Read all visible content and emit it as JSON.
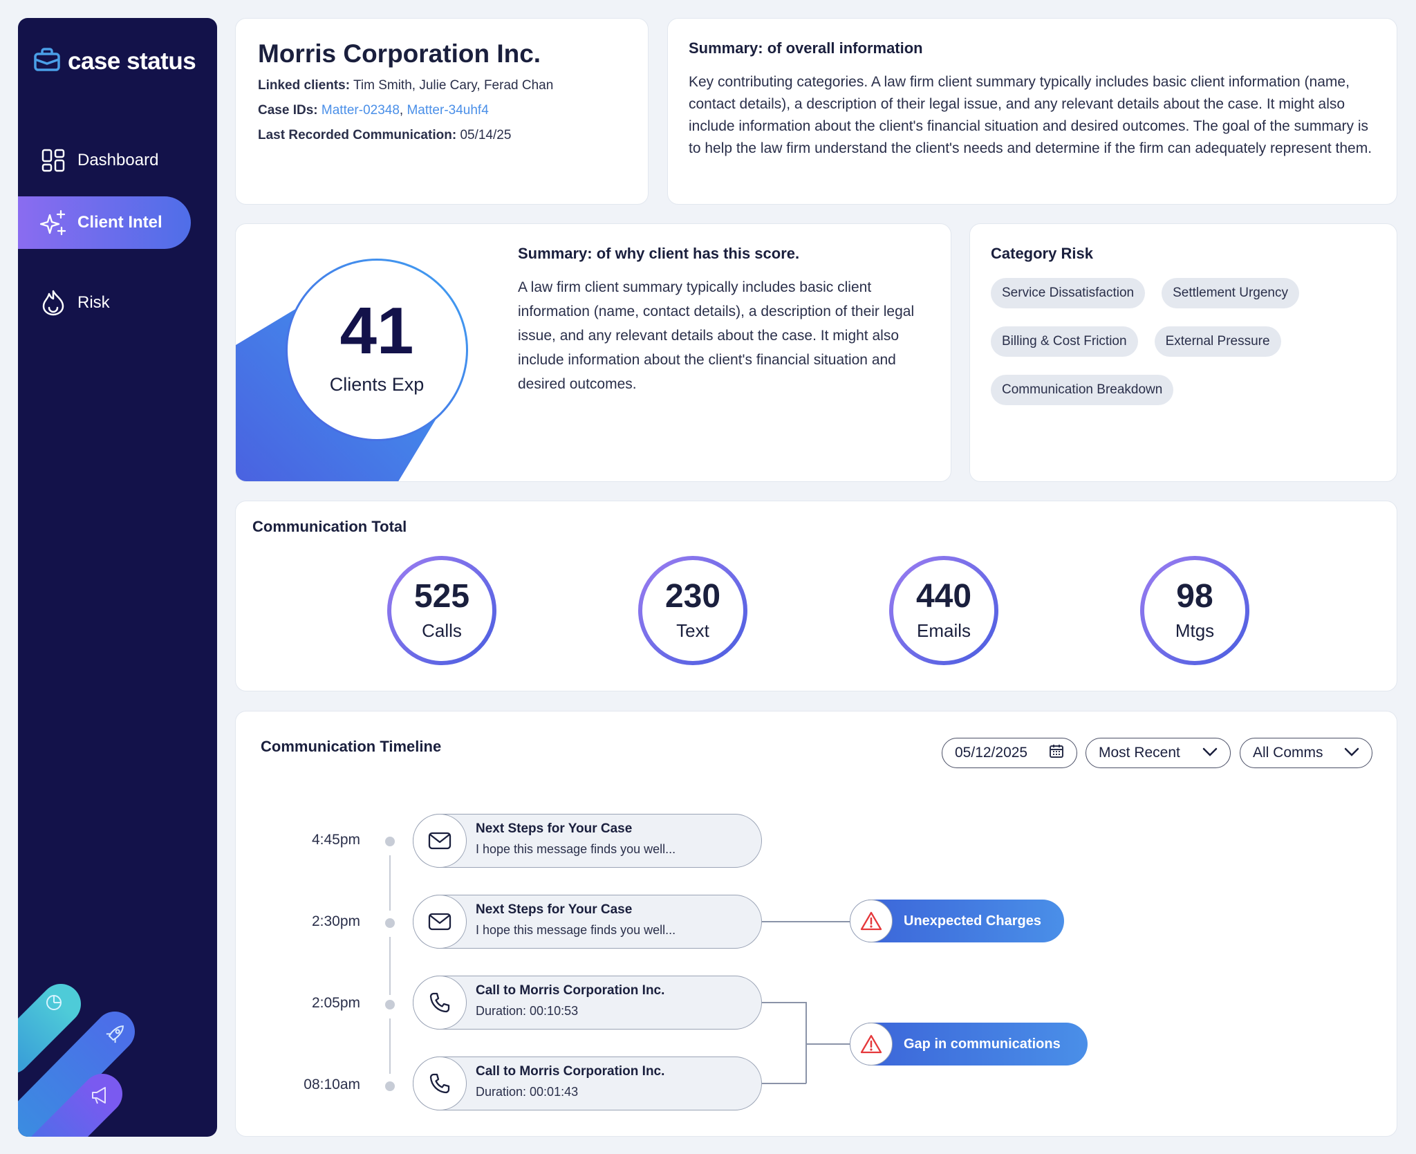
{
  "app": {
    "logo_text": "case status"
  },
  "sidebar": {
    "items": [
      {
        "label": "Dashboard",
        "icon": "grid-icon"
      },
      {
        "label": "Client Intel",
        "icon": "sparkle-icon",
        "active": true
      },
      {
        "label": "Risk",
        "icon": "flame-icon"
      }
    ],
    "decor_icons": [
      "pie-chart-icon",
      "rocket-icon",
      "megaphone-icon"
    ]
  },
  "client": {
    "name": "Morris Corporation Inc.",
    "linked_label": "Linked clients:",
    "linked_value": "Tim Smith, Julie Cary, Ferad Chan",
    "case_ids_label": "Case IDs:",
    "case_id_1": "Matter-02348",
    "case_id_sep": ",",
    "case_id_2": "Matter-34uhf4",
    "last_comm_label": "Last Recorded Communication:",
    "last_comm_value": "05/14/25"
  },
  "overall_summary": {
    "title": "Summary: of overall information",
    "text": "Key contributing categories. A law firm client summary typically includes basic client information (name, contact details), a description of their legal issue, and any relevant details about the case. It might also include information about the client's financial situation and desired outcomes. The goal of the summary is to help the law firm understand the client's needs and determine if the firm can adequately represent them."
  },
  "score": {
    "value": "41",
    "label": "Clients Exp",
    "summary_title": "Summary: of why client has this score.",
    "summary_text": "A law firm client summary typically includes basic client information (name, contact details), a description of their legal issue, and any relevant details about the case. It might also include information about the client's financial situation and desired outcomes."
  },
  "category_risk": {
    "title": "Category Risk",
    "tags": [
      "Service Dissatisfaction",
      "Settlement Urgency",
      "Billing & Cost Friction",
      "External Pressure",
      "Communication Breakdown"
    ]
  },
  "communication_total": {
    "title": "Communication Total",
    "stats": [
      {
        "value": "525",
        "label": "Calls"
      },
      {
        "value": "230",
        "label": "Text"
      },
      {
        "value": "440",
        "label": "Emails"
      },
      {
        "value": "98",
        "label": "Mtgs"
      }
    ]
  },
  "timeline": {
    "title": "Communication Timeline",
    "filters": {
      "date": "05/12/2025",
      "sort": "Most Recent",
      "type": "All Comms"
    },
    "items": [
      {
        "time": "4:45pm",
        "icon": "envelope-icon",
        "title": "Next Steps for Your Case",
        "subtitle": "I hope this message finds you well..."
      },
      {
        "time": "2:30pm",
        "icon": "envelope-icon",
        "title": "Next Steps for Your Case",
        "subtitle": "I hope this message finds you well..."
      },
      {
        "time": "2:05pm",
        "icon": "phone-icon",
        "title": "Call to Morris Corporation Inc.",
        "subtitle": "Duration: 00:10:53"
      },
      {
        "time": "08:10am",
        "icon": "phone-icon",
        "title": "Call to Morris Corporation Inc.",
        "subtitle": "Duration: 00:01:43"
      }
    ],
    "alerts": [
      {
        "label": "Unexpected Charges",
        "icon": "warning-icon"
      },
      {
        "label": "Gap in communications",
        "icon": "warning-icon"
      }
    ]
  },
  "colors": {
    "sidebar": "#13124a",
    "accent_blue": "#4a8fe8",
    "accent_purple": "#8a6cf0",
    "alert_red": "#e5383b"
  }
}
